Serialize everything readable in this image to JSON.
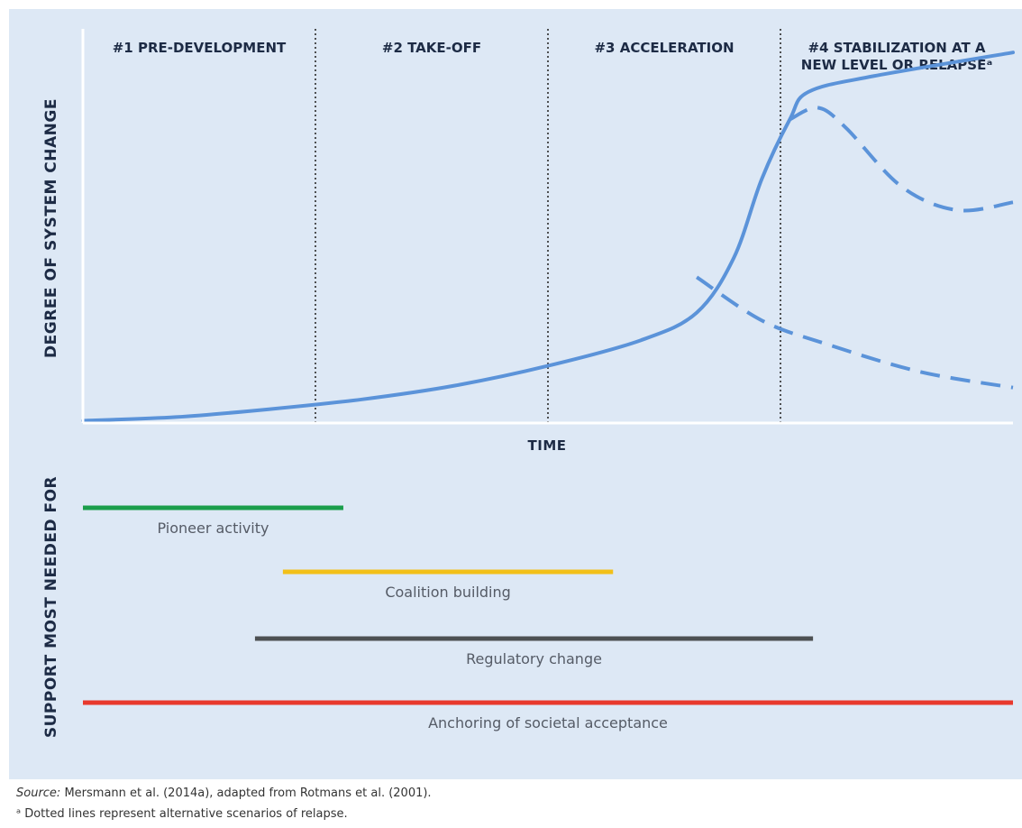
{
  "phases": [
    {
      "label_lines": [
        "#1 PRE-DEVELOPMENT"
      ]
    },
    {
      "label_lines": [
        "#2 TAKE-OFF"
      ]
    },
    {
      "label_lines": [
        "#3 ACCELERATION"
      ]
    },
    {
      "label_lines": [
        "#4 STABILIZATION AT A",
        "NEW LEVEL OR RELAPSEᵃ"
      ]
    }
  ],
  "axes": {
    "y_label": "DEGREE OF SYSTEM CHANGE",
    "x_label": "TIME",
    "support_label": "SUPPORT MOST NEEDED FOR"
  },
  "curves": {
    "main": [
      [
        0,
        0.6
      ],
      [
        10,
        1.5
      ],
      [
        20,
        3.5
      ],
      [
        30,
        6
      ],
      [
        40,
        9.5
      ],
      [
        50,
        14.5
      ],
      [
        60,
        21
      ],
      [
        66,
        28
      ],
      [
        70,
        42
      ],
      [
        73,
        62
      ],
      [
        76,
        77
      ],
      [
        78,
        84
      ],
      [
        85,
        88
      ],
      [
        100,
        94
      ]
    ],
    "relapse_high": [
      [
        76,
        77
      ],
      [
        79,
        80
      ],
      [
        82,
        75
      ],
      [
        88,
        60
      ],
      [
        94,
        54
      ],
      [
        100,
        56
      ]
    ],
    "relapse_low": [
      [
        66,
        37
      ],
      [
        73,
        26
      ],
      [
        80,
        20
      ],
      [
        90,
        13
      ],
      [
        100,
        9
      ]
    ]
  },
  "phase_boundaries": [
    25,
    50,
    75
  ],
  "support_bars": [
    {
      "label": "Pioneer activity",
      "start": 0,
      "end": 28,
      "color": "#1a9e4b"
    },
    {
      "label": "Coalition building",
      "start": 21.5,
      "end": 57,
      "color": "#f2c019"
    },
    {
      "label": "Regulatory change",
      "start": 18.5,
      "end": 78.5,
      "color": "#4d5052"
    },
    {
      "label": "Anchoring of societal acceptance",
      "start": 0,
      "end": 100,
      "color": "#e8392d"
    }
  ],
  "colors": {
    "curve": "#5b93d9",
    "axis": "#ffffff",
    "divider": "#2a2a2a"
  },
  "footnotes": {
    "source_label": "Source:",
    "source_text": " Mersmann et al. (2014a), adapted from Rotmans et al. (2001).",
    "note": "ᵃ Dotted lines represent alternative scenarios of relapse."
  }
}
